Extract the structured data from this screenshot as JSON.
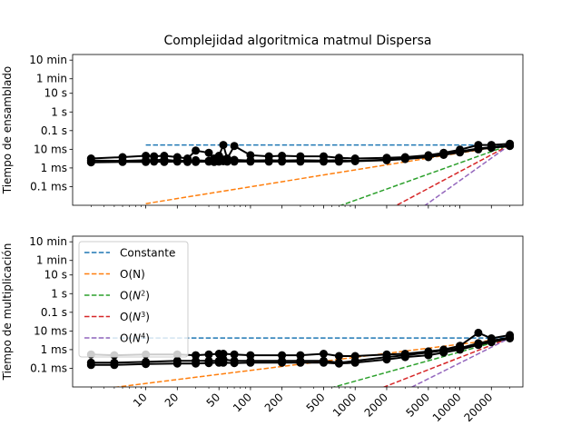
{
  "chart_data": {
    "type": "line",
    "title": "Complejidad algoritmica matmul Dispersa",
    "x_scale": "log",
    "xlim": [
      2,
      40000
    ],
    "x_ticks": [
      10,
      20,
      50,
      100,
      200,
      500,
      1000,
      2000,
      5000,
      10000,
      20000
    ],
    "x_tick_labels": [
      "10",
      "20",
      "50",
      "100",
      "200",
      "500",
      "1000",
      "2000",
      "5000",
      "10000",
      "20000"
    ],
    "y_scale": "log",
    "y_tick_values_seconds": [
      0.0001,
      0.001,
      0.01,
      0.1,
      1,
      10,
      60,
      600
    ],
    "y_tick_labels": [
      "0.1 ms",
      "1 ms",
      "10 ms",
      "0.1 s",
      "1 s",
      "10 s",
      "1 min",
      "10 min"
    ],
    "legend_position": "upper-left",
    "legend_entries": [
      {
        "label": "Constante",
        "color": "#1f77b4"
      },
      {
        "label": "O(N)",
        "color": "#ff7f0e"
      },
      {
        "label": "O(N^2)",
        "color": "#2ca02c"
      },
      {
        "label": "O(N^3)",
        "color": "#d62728"
      },
      {
        "label": "O(N^4)",
        "color": "#9467bd"
      }
    ],
    "subplots": [
      {
        "ylabel": "Tiempo de ensamblado",
        "ylim": [
          1e-05,
          1200
        ],
        "series": [
          {
            "values": [
              [
                3,
                0.0032
              ],
              [
                6,
                0.0038
              ],
              [
                10,
                0.0045
              ],
              [
                12,
                0.0042
              ],
              [
                15,
                0.0045
              ],
              [
                20,
                0.0038
              ],
              [
                25,
                0.0032
              ],
              [
                30,
                0.0085
              ],
              [
                40,
                0.0065
              ],
              [
                45,
                0.0032
              ],
              [
                50,
                0.0045
              ],
              [
                55,
                0.017
              ],
              [
                60,
                0.0032
              ],
              [
                70,
                0.015
              ],
              [
                100,
                0.0048
              ],
              [
                150,
                0.0042
              ],
              [
                200,
                0.0045
              ],
              [
                300,
                0.0042
              ],
              [
                500,
                0.0042
              ],
              [
                700,
                0.0035
              ],
              [
                1000,
                0.0032
              ],
              [
                2000,
                0.0035
              ],
              [
                3000,
                0.0038
              ],
              [
                5000,
                0.0048
              ],
              [
                7000,
                0.0065
              ],
              [
                10000,
                0.0095
              ],
              [
                15000,
                0.017
              ],
              [
                20000,
                0.017
              ],
              [
                30000,
                0.02
              ]
            ]
          },
          {
            "values": [
              [
                3,
                0.0025
              ],
              [
                6,
                0.0024
              ],
              [
                10,
                0.0026
              ],
              [
                12,
                0.0026
              ],
              [
                15,
                0.0028
              ],
              [
                20,
                0.0024
              ],
              [
                25,
                0.0025
              ],
              [
                30,
                0.0026
              ],
              [
                40,
                0.0024
              ],
              [
                45,
                0.0025
              ],
              [
                50,
                0.0026
              ],
              [
                55,
                0.0028
              ],
              [
                60,
                0.0026
              ],
              [
                70,
                0.0027
              ],
              [
                100,
                0.0025
              ],
              [
                150,
                0.0026
              ],
              [
                200,
                0.0025
              ],
              [
                300,
                0.0026
              ],
              [
                500,
                0.0025
              ],
              [
                700,
                0.0026
              ],
              [
                1000,
                0.0024
              ],
              [
                2000,
                0.0028
              ],
              [
                3000,
                0.0032
              ],
              [
                5000,
                0.0042
              ],
              [
                7000,
                0.0058
              ],
              [
                10000,
                0.0078
              ],
              [
                15000,
                0.011
              ],
              [
                20000,
                0.013
              ],
              [
                30000,
                0.016
              ]
            ]
          },
          {
            "values": [
              [
                3,
                0.002
              ],
              [
                6,
                0.0021
              ],
              [
                10,
                0.0021
              ],
              [
                12,
                0.0022
              ],
              [
                15,
                0.0021
              ],
              [
                20,
                0.0022
              ],
              [
                25,
                0.0021
              ],
              [
                30,
                0.0021
              ],
              [
                40,
                0.0022
              ],
              [
                45,
                0.0021
              ],
              [
                50,
                0.0022
              ],
              [
                55,
                0.0023
              ],
              [
                60,
                0.0022
              ],
              [
                70,
                0.0022
              ],
              [
                100,
                0.0022
              ],
              [
                150,
                0.0022
              ],
              [
                200,
                0.0022
              ],
              [
                300,
                0.0022
              ],
              [
                500,
                0.0022
              ],
              [
                700,
                0.0022
              ],
              [
                1000,
                0.0023
              ],
              [
                2000,
                0.0026
              ],
              [
                3000,
                0.003
              ],
              [
                5000,
                0.0038
              ],
              [
                7000,
                0.005
              ],
              [
                10000,
                0.0068
              ],
              [
                15000,
                0.01
              ],
              [
                20000,
                0.012
              ],
              [
                30000,
                0.015
              ]
            ]
          }
        ],
        "reference_lines": [
          {
            "name": "Constante",
            "values": [
              [
                10,
                0.017
              ],
              [
                30000,
                0.017
              ]
            ]
          },
          {
            "name": "O(N)",
            "values": [
              [
                10,
                1.23e-05
              ],
              [
                30000,
                0.017
              ]
            ]
          },
          {
            "name": "O(N^2)",
            "values": [
              [
                700,
                9e-06
              ],
              [
                30000,
                0.017
              ]
            ]
          },
          {
            "name": "O(N^3)",
            "values": [
              [
                2200,
                6.9e-06
              ],
              [
                30000,
                0.017
              ]
            ]
          },
          {
            "name": "O(N^4)",
            "values": [
              [
                4000,
                5.4e-06
              ],
              [
                30000,
                0.017
              ]
            ]
          }
        ]
      },
      {
        "ylabel": "Tiempo de multiplicación",
        "ylim": [
          1e-05,
          1200
        ],
        "series": [
          {
            "values": [
              [
                3,
                0.00055
              ],
              [
                5,
                0.0005
              ],
              [
                10,
                0.00055
              ],
              [
                20,
                0.00055
              ],
              [
                30,
                0.0005
              ],
              [
                40,
                0.00055
              ],
              [
                50,
                0.0006
              ],
              [
                55,
                0.0006
              ],
              [
                70,
                0.00055
              ],
              [
                100,
                0.0005
              ],
              [
                200,
                0.0005
              ],
              [
                300,
                0.0005
              ],
              [
                500,
                0.0006
              ],
              [
                700,
                0.00045
              ],
              [
                1000,
                0.00045
              ],
              [
                2000,
                0.00055
              ],
              [
                3000,
                0.0006
              ],
              [
                5000,
                0.0008
              ],
              [
                7000,
                0.001
              ],
              [
                10000,
                0.0016
              ],
              [
                15000,
                0.008
              ],
              [
                20000,
                0.004
              ],
              [
                30000,
                0.006
              ]
            ]
          },
          {
            "values": [
              [
                3,
                0.0002
              ],
              [
                5,
                0.0002
              ],
              [
                10,
                0.00022
              ],
              [
                20,
                0.00025
              ],
              [
                30,
                0.00025
              ],
              [
                40,
                0.00025
              ],
              [
                50,
                0.00025
              ],
              [
                55,
                0.0003
              ],
              [
                70,
                0.00025
              ],
              [
                100,
                0.00025
              ],
              [
                200,
                0.00025
              ],
              [
                300,
                0.00025
              ],
              [
                500,
                0.00025
              ],
              [
                700,
                0.0002
              ],
              [
                1000,
                0.00025
              ],
              [
                2000,
                0.0004
              ],
              [
                3000,
                0.0005
              ],
              [
                5000,
                0.0007
              ],
              [
                7000,
                0.0009
              ],
              [
                10000,
                0.0012
              ],
              [
                15000,
                0.0022
              ],
              [
                20000,
                0.003
              ],
              [
                30000,
                0.0045
              ]
            ]
          },
          {
            "values": [
              [
                3,
                0.00015
              ],
              [
                5,
                0.00015
              ],
              [
                10,
                0.00017
              ],
              [
                20,
                0.00018
              ],
              [
                30,
                0.00018
              ],
              [
                40,
                0.00019
              ],
              [
                50,
                0.0002
              ],
              [
                55,
                0.0002
              ],
              [
                70,
                0.00019
              ],
              [
                100,
                0.0002
              ],
              [
                200,
                0.0002
              ],
              [
                300,
                0.0002
              ],
              [
                500,
                0.0002
              ],
              [
                700,
                0.00018
              ],
              [
                1000,
                0.0002
              ],
              [
                2000,
                0.0003
              ],
              [
                3000,
                0.0004
              ],
              [
                5000,
                0.0005
              ],
              [
                7000,
                0.0007
              ],
              [
                10000,
                0.001
              ],
              [
                15000,
                0.0018
              ],
              [
                20000,
                0.0025
              ],
              [
                30000,
                0.004
              ]
            ]
          }
        ],
        "reference_lines": [
          {
            "name": "Constante",
            "values": [
              [
                3,
                0.0042
              ],
              [
                30000,
                0.0042
              ]
            ]
          },
          {
            "name": "O(N)",
            "values": [
              [
                5,
                9.5e-06
              ],
              [
                30000,
                0.0042
              ]
            ]
          },
          {
            "name": "O(N^2)",
            "values": [
              [
                500,
                6.9e-06
              ],
              [
                30000,
                0.0042
              ]
            ]
          },
          {
            "name": "O(N^3)",
            "values": [
              [
                1600,
                6.9e-06
              ],
              [
                30000,
                0.0042
              ]
            ]
          },
          {
            "name": "O(N^4)",
            "values": [
              [
                3000,
                6.5e-06
              ],
              [
                30000,
                0.0042
              ]
            ]
          }
        ]
      }
    ]
  }
}
